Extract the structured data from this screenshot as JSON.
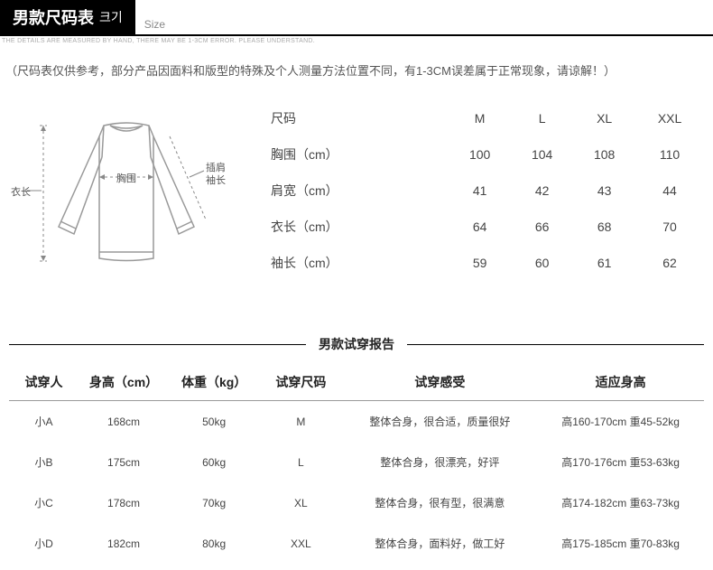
{
  "header": {
    "title_cn": "男款尺码表",
    "title_kr": "크기",
    "size_en": "Size",
    "fine_print": "THE DETAILS ARE MEASURED BY HAND, THERE MAY BE 1-3CM ERROR. PLEASE UNDERSTAND."
  },
  "note": "（尺码表仅供参考，部分产品因面料和版型的特殊及个人测量方法位置不同，有1-3CM误差属于正常现象，请谅解！）",
  "diagram": {
    "label_length": "衣长",
    "label_bust": "胸围",
    "label_sleeve_a": "插肩",
    "label_sleeve_b": "袖长",
    "stroke": "#999999",
    "dash_stroke": "#888888"
  },
  "size_table": {
    "head_size": "尺码",
    "row_bust": "胸围（cm）",
    "row_shoulder": "肩宽（cm）",
    "row_length": "衣长（cm）",
    "row_sleeve": "袖长（cm）",
    "cols": [
      "M",
      "L",
      "XL",
      "XXL"
    ],
    "bust": [
      "100",
      "104",
      "108",
      "110"
    ],
    "shoulder": [
      "41",
      "42",
      "43",
      "44"
    ],
    "length": [
      "64",
      "66",
      "68",
      "70"
    ],
    "sleeve": [
      "59",
      "60",
      "61",
      "62"
    ]
  },
  "report": {
    "title": "男款试穿报告",
    "head_person": "试穿人",
    "head_height": "身高（cm）",
    "head_weight": "体重（kg）",
    "head_size": "试穿尺码",
    "head_feel": "试穿感受",
    "head_fit": "适应身高",
    "rows": [
      {
        "p": "小A",
        "h": "168cm",
        "w": "50kg",
        "s": "M",
        "f": "整体合身，很合适，质量很好",
        "r": "高160-170cm 重45-52kg"
      },
      {
        "p": "小B",
        "h": "175cm",
        "w": "60kg",
        "s": "L",
        "f": "整体合身，很漂亮，好评",
        "r": "高170-176cm 重53-63kg"
      },
      {
        "p": "小C",
        "h": "178cm",
        "w": "70kg",
        "s": "XL",
        "f": "整体合身，很有型，很满意",
        "r": "高174-182cm 重63-73kg"
      },
      {
        "p": "小D",
        "h": "182cm",
        "w": "80kg",
        "s": "XXL",
        "f": "整体合身，面料好，做工好",
        "r": "高175-185cm 重70-83kg"
      }
    ]
  }
}
